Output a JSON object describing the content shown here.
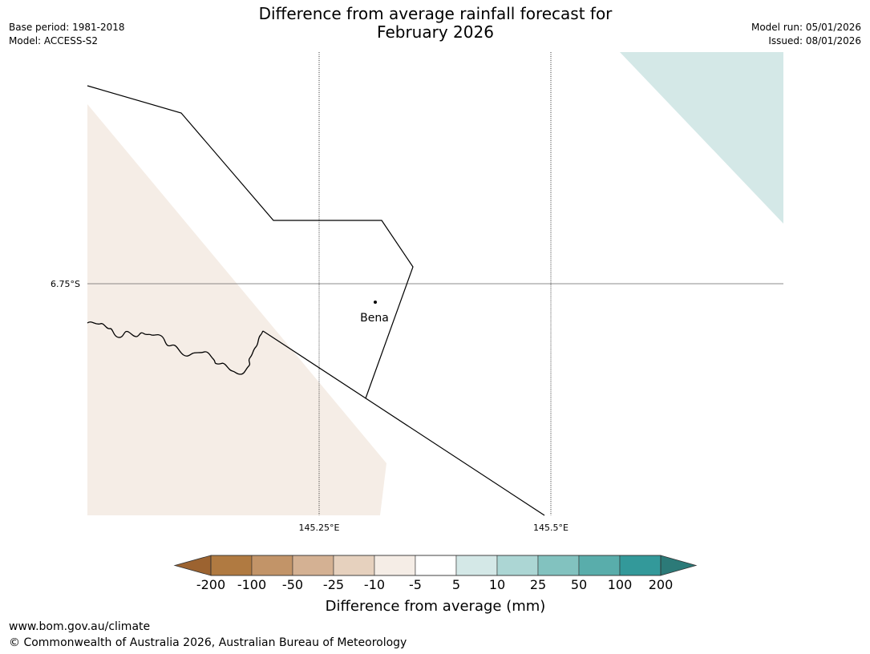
{
  "header": {
    "title_line1": "Difference from average rainfall forecast for",
    "title_line2": "February 2026",
    "base_period": "Base period: 1981-2018",
    "model": "Model: ACCESS-S2",
    "model_run": "Model run: 05/01/2026",
    "issued": "Issued: 08/01/2026"
  },
  "map": {
    "lat_label": "6.75°S",
    "lon_labels": [
      "145.25°E",
      "145.5°E"
    ],
    "place": "Bena",
    "fill_dry": "#f5ede6",
    "fill_wet": "#d4e8e7"
  },
  "colorbar": {
    "ticks": [
      "-200",
      "-100",
      "-50",
      "-25",
      "-10",
      "-5",
      "5",
      "10",
      "25",
      "50",
      "100",
      "200"
    ],
    "colors": [
      "#9c6330",
      "#b07a41",
      "#c29468",
      "#d4b193",
      "#e6d1be",
      "#f5ede6",
      "#ffffff",
      "#d4e8e7",
      "#acd6d4",
      "#82c2bf",
      "#59adab",
      "#33999a",
      "#2c7a78"
    ],
    "label": "Difference from average (mm)"
  },
  "footer": {
    "url": "www.bom.gov.au/climate",
    "copyright": "© Commonwealth of Australia 2026, Australian Bureau of Meteorology"
  }
}
